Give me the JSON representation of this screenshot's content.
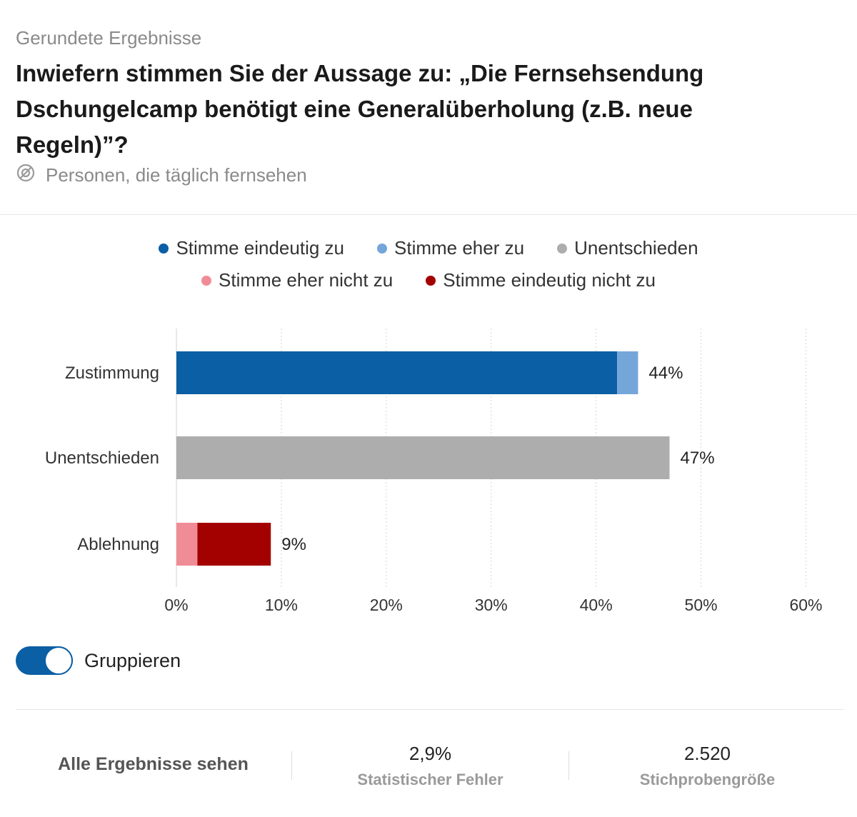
{
  "header": {
    "supertitle": "Gerundete Ergebnisse",
    "question": "Inwiefern stimmen Sie der Aussage zu: „Die Fernsehsendung Dschungelcamp benötigt eine Generalüberholung (z.B. neue Regeln)”?",
    "filter_label": "Personen, die täglich fernsehen",
    "filter_icon": "filter-icon"
  },
  "legend": [
    {
      "label": "Stimme eindeutig zu",
      "color": "#0b5fa5"
    },
    {
      "label": "Stimme eher zu",
      "color": "#74a6da"
    },
    {
      "label": "Unentschieden",
      "color": "#adadad"
    },
    {
      "label": "Stimme eher nicht zu",
      "color": "#f08c95"
    },
    {
      "label": "Stimme eindeutig nicht zu",
      "color": "#a30000"
    }
  ],
  "chart_data": {
    "type": "bar",
    "orientation": "horizontal",
    "stacked": true,
    "categories": [
      "Zustimmung",
      "Unentschieden",
      "Ablehnung"
    ],
    "series": [
      {
        "name": "Stimme eindeutig zu",
        "values": [
          42,
          0,
          0
        ],
        "color": "#0b5fa5"
      },
      {
        "name": "Stimme eher zu",
        "values": [
          2,
          0,
          0
        ],
        "color": "#74a6da"
      },
      {
        "name": "Unentschieden",
        "values": [
          0,
          47,
          0
        ],
        "color": "#adadad"
      },
      {
        "name": "Stimme eher nicht zu",
        "values": [
          0,
          0,
          2
        ],
        "color": "#f08c95"
      },
      {
        "name": "Stimme eindeutig nicht zu",
        "values": [
          0,
          0,
          7
        ],
        "color": "#a30000"
      }
    ],
    "totals": [
      44,
      47,
      9
    ],
    "total_labels": [
      "44%",
      "47%",
      "9%"
    ],
    "xlim": [
      0,
      60
    ],
    "xticks": [
      0,
      10,
      20,
      30,
      40,
      50,
      60
    ],
    "xtick_labels": [
      "0%",
      "10%",
      "20%",
      "30%",
      "40%",
      "50%",
      "60%"
    ],
    "grid": true,
    "legend_position": "top-center"
  },
  "controls": {
    "group_toggle_label": "Gruppieren",
    "group_toggle_on": true
  },
  "footer": {
    "see_all": "Alle Ergebnisse sehen",
    "error_value": "2,9%",
    "error_label": "Statistischer Fehler",
    "sample_value": "2.520",
    "sample_label": "Stichprobengröße"
  }
}
